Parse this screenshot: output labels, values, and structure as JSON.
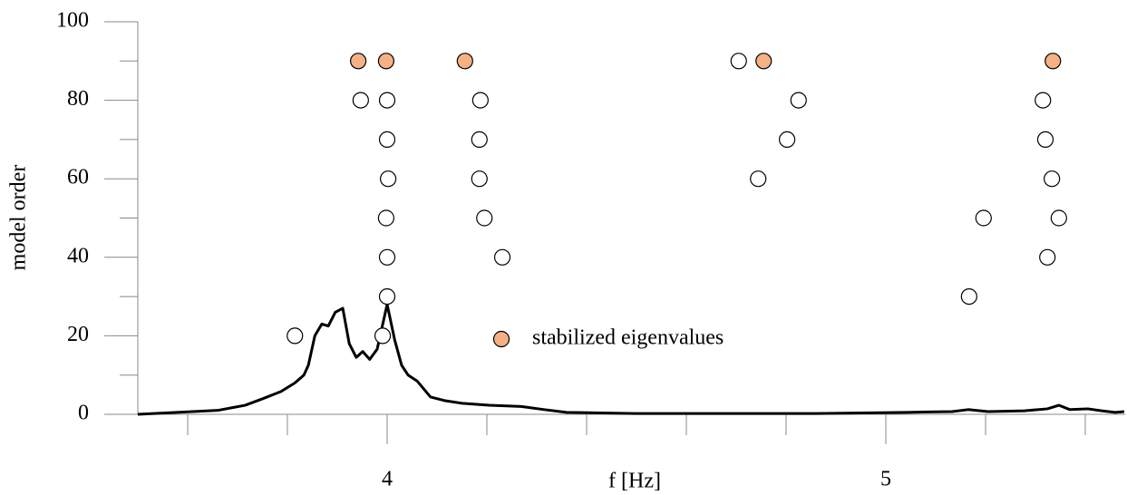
{
  "chart_data": {
    "type": "scatter",
    "x_label": "f [Hz]",
    "y_label": "model order",
    "xlim": [
      3.5,
      5.48
    ],
    "xticks": [
      4,
      5
    ],
    "xminor_ticks": [
      3.6,
      3.8,
      4.2,
      4.4,
      4.6,
      4.8,
      5.2,
      5.4
    ],
    "ylim": [
      0,
      100
    ],
    "yticks": [
      0,
      20,
      40,
      60,
      80,
      100
    ],
    "yminor_ticks": [
      10,
      30,
      50,
      70,
      90
    ],
    "series": [
      {
        "name": "stabilized eigenvalues",
        "color": "#f4b183",
        "x": [
          3.942,
          3.998,
          4.156,
          4.755,
          5.335
        ],
        "values": [
          90,
          90,
          90,
          90,
          90
        ]
      },
      {
        "color": "#ffffff",
        "x": [
          3.815,
          3.991,
          4.0,
          5.167,
          4.0,
          4.231,
          5.324,
          3.998,
          4.195,
          5.196,
          5.347,
          4.002,
          4.185,
          4.744,
          5.333,
          4.0,
          4.185,
          4.802,
          5.32,
          3.947,
          4.0,
          4.187,
          4.825,
          5.315,
          4.705
        ],
        "values": [
          20,
          20,
          30,
          30,
          40,
          40,
          40,
          50,
          50,
          50,
          50,
          60,
          60,
          60,
          60,
          70,
          70,
          70,
          70,
          80,
          80,
          80,
          80,
          80,
          90
        ]
      }
    ],
    "spectrum": {
      "color": "#000000",
      "x": [
        3.5,
        3.66,
        3.715,
        3.751,
        3.787,
        3.815,
        3.833,
        3.842,
        3.855,
        3.869,
        3.882,
        3.896,
        3.911,
        3.924,
        3.938,
        3.951,
        3.965,
        3.98,
        4.0,
        4.015,
        4.029,
        4.042,
        4.06,
        4.087,
        4.115,
        4.151,
        4.205,
        4.269,
        4.315,
        4.36,
        4.496,
        4.86,
        5.042,
        5.133,
        5.165,
        5.205,
        5.278,
        5.324,
        5.347,
        5.369,
        5.405,
        5.433,
        5.46,
        5.478
      ],
      "values": [
        0,
        1,
        2.3,
        4,
        5.8,
        8,
        10,
        12.5,
        20,
        23,
        22.5,
        26,
        27,
        18,
        14.5,
        16,
        14,
        16.6,
        28,
        19,
        12.5,
        10,
        8.5,
        4.4,
        3.5,
        2.8,
        2.3,
        2,
        1.2,
        0.5,
        0.2,
        0.2,
        0.5,
        0.7,
        1.2,
        0.7,
        0.9,
        1.4,
        2.3,
        1.2,
        1.4,
        0.9,
        0.5,
        0.7
      ]
    }
  }
}
